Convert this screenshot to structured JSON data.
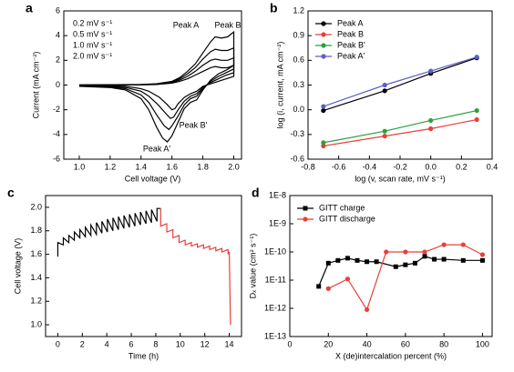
{
  "chart_data": [
    {
      "type": "line",
      "panel_label": "a",
      "xlabel": "Cell voltage (V)",
      "ylabel": "Current (mA cm⁻²)",
      "xlim": [
        0.9,
        2.05
      ],
      "ylim": [
        -6,
        6
      ],
      "xticks": [
        {
          "value": 1,
          "label": "1.0"
        },
        1.2,
        1.4,
        1.6,
        1.8,
        {
          "value": 2,
          "label": "2.0"
        }
      ],
      "yticks": [
        -6,
        -4,
        -2,
        0,
        2,
        4,
        6
      ],
      "legend": "upper left",
      "legend_symbols": false,
      "annotations": [
        "Peak A",
        "Peak B",
        "Peak B'",
        "Peak A'"
      ],
      "series": [
        {
          "name": "0.2 mV s⁻¹",
          "color": "#000000",
          "x": [
            1.0,
            1.2,
            1.4,
            1.5,
            1.6,
            1.65,
            1.7,
            1.75,
            1.8,
            1.85,
            1.88,
            1.92,
            1.96,
            2.0,
            2.0,
            1.95,
            1.9,
            1.85,
            1.8,
            1.76,
            1.72,
            1.68,
            1.64,
            1.62,
            1.6,
            1.57,
            1.52,
            1.45,
            1.4,
            1.3,
            1.2,
            1.0
          ],
          "values": [
            0,
            0.01,
            0.02,
            0.04,
            0.15,
            0.3,
            0.5,
            0.8,
            1.1,
            1.4,
            1.5,
            1.4,
            1.4,
            1.6,
            0.7,
            0.5,
            0.3,
            0.1,
            -0.1,
            -0.5,
            -0.7,
            -1.0,
            -1.5,
            -1.9,
            -2.0,
            -1.6,
            -1.0,
            -0.5,
            -0.3,
            -0.1,
            -0.05,
            -0.02
          ]
        },
        {
          "name": "0.5 mV s⁻¹",
          "color": "#000000",
          "x": [
            1.0,
            1.2,
            1.4,
            1.5,
            1.6,
            1.65,
            1.7,
            1.75,
            1.8,
            1.85,
            1.88,
            1.92,
            1.96,
            2.0,
            2.0,
            1.95,
            1.9,
            1.85,
            1.8,
            1.76,
            1.72,
            1.68,
            1.64,
            1.61,
            1.59,
            1.56,
            1.51,
            1.45,
            1.4,
            1.3,
            1.2,
            1.0
          ],
          "values": [
            0,
            0.01,
            0.03,
            0.06,
            0.2,
            0.4,
            0.7,
            1.1,
            1.6,
            2.0,
            2.1,
            2.0,
            2.0,
            2.2,
            1.0,
            0.8,
            0.5,
            0.2,
            -0.2,
            -0.7,
            -0.9,
            -1.3,
            -2.0,
            -2.6,
            -2.7,
            -2.3,
            -1.6,
            -0.9,
            -0.5,
            -0.2,
            -0.1,
            -0.05
          ]
        },
        {
          "name": "1.0 mV s⁻¹",
          "color": "#000000",
          "x": [
            1.0,
            1.2,
            1.4,
            1.5,
            1.6,
            1.65,
            1.7,
            1.75,
            1.8,
            1.85,
            1.88,
            1.92,
            1.96,
            2.0,
            2.0,
            1.95,
            1.9,
            1.85,
            1.8,
            1.76,
            1.72,
            1.68,
            1.64,
            1.6,
            1.58,
            1.55,
            1.5,
            1.45,
            1.4,
            1.3,
            1.2,
            1.0
          ],
          "values": [
            0,
            0.02,
            0.04,
            0.08,
            0.25,
            0.5,
            0.9,
            1.4,
            2.1,
            2.7,
            2.9,
            2.8,
            2.8,
            3.0,
            1.3,
            1.0,
            0.7,
            0.3,
            -0.3,
            -0.9,
            -1.1,
            -1.6,
            -2.5,
            -3.3,
            -3.6,
            -3.3,
            -2.4,
            -1.4,
            -0.8,
            -0.3,
            -0.15,
            -0.08
          ]
        },
        {
          "name": "2.0 mV s⁻¹",
          "color": "#000000",
          "x": [
            1.0,
            1.2,
            1.4,
            1.5,
            1.6,
            1.65,
            1.7,
            1.75,
            1.8,
            1.85,
            1.88,
            1.92,
            1.96,
            2.0,
            2.0,
            1.95,
            1.9,
            1.85,
            1.8,
            1.76,
            1.72,
            1.68,
            1.64,
            1.6,
            1.57,
            1.54,
            1.5,
            1.45,
            1.4,
            1.3,
            1.2,
            1.0
          ],
          "values": [
            0,
            0.02,
            0.05,
            0.1,
            0.3,
            0.6,
            1.1,
            1.7,
            2.6,
            3.5,
            3.9,
            3.8,
            3.9,
            4.3,
            1.6,
            1.2,
            0.9,
            0.4,
            -0.4,
            -1.2,
            -1.4,
            -1.9,
            -3.0,
            -4.1,
            -4.6,
            -4.3,
            -3.4,
            -2.0,
            -1.1,
            -0.4,
            -0.2,
            -0.1
          ]
        }
      ]
    },
    {
      "type": "line",
      "panel_label": "b",
      "xlabel": "log (v, scan rate, mV s⁻¹)",
      "ylabel": "log (i, current, mA cm⁻²)",
      "xlim": [
        -0.8,
        0.4
      ],
      "ylim": [
        -0.6,
        1.2
      ],
      "xticks": [
        -0.8,
        -0.6,
        -0.4,
        -0.2,
        {
          "value": 0,
          "label": "0.0"
        },
        0.2,
        0.4
      ],
      "yticks": [
        -0.6,
        -0.3,
        {
          "value": 0,
          "label": "0.0"
        },
        0.3,
        0.6,
        0.9,
        1.2
      ],
      "legend": "upper left",
      "legend_symbols": true,
      "series": [
        {
          "name": "Peak A",
          "color": "#000000",
          "marker": "circle",
          "x": [
            -0.7,
            -0.3,
            0,
            0.3
          ],
          "values": [
            -0.01,
            0.23,
            0.44,
            0.63
          ]
        },
        {
          "name": "Peak B",
          "color": "#e8403a",
          "marker": "circle",
          "x": [
            -0.7,
            -0.3,
            0,
            0.3
          ],
          "values": [
            -0.44,
            -0.32,
            -0.23,
            -0.12
          ]
        },
        {
          "name": "Peak B'",
          "color": "#2e9e3e",
          "marker": "circle",
          "x": [
            -0.7,
            -0.3,
            0,
            0.3
          ],
          "values": [
            -0.4,
            -0.26,
            -0.13,
            -0.01
          ]
        },
        {
          "name": "Peak A'",
          "color": "#5b5fc7",
          "marker": "circle",
          "x": [
            -0.7,
            -0.3,
            0,
            0.3
          ],
          "values": [
            0.04,
            0.3,
            0.47,
            0.64
          ]
        }
      ]
    },
    {
      "type": "line",
      "panel_label": "c",
      "xlabel": "Time (h)",
      "ylabel": "Cell voltage (V)",
      "xlim": [
        -1,
        15
      ],
      "ylim": [
        0.9,
        2.1
      ],
      "xticks": [
        0,
        2,
        4,
        6,
        8,
        10,
        12,
        14
      ],
      "yticks": [
        {
          "value": 1,
          "label": "1.0"
        },
        1.2,
        1.4,
        1.6,
        1.8,
        {
          "value": 2,
          "label": "2.0"
        }
      ],
      "series": [
        {
          "color": "#000000",
          "x": [
            0,
            0,
            0.45,
            0.45,
            0.9,
            0.9,
            1.35,
            1.35,
            1.8,
            1.8,
            2.25,
            2.25,
            2.7,
            2.7,
            3.15,
            3.15,
            3.6,
            3.6,
            4.05,
            4.05,
            4.5,
            4.5,
            4.95,
            4.95,
            5.4,
            5.4,
            5.85,
            5.85,
            6.3,
            6.3,
            6.75,
            6.75,
            7.2,
            7.2,
            7.65,
            7.65,
            8.1,
            8.1,
            8.4
          ],
          "values": [
            1.58,
            1.7,
            1.68,
            1.74,
            1.7,
            1.76,
            1.72,
            1.79,
            1.74,
            1.81,
            1.75,
            1.83,
            1.76,
            1.85,
            1.77,
            1.87,
            1.78,
            1.88,
            1.79,
            1.9,
            1.8,
            1.91,
            1.81,
            1.92,
            1.82,
            1.93,
            1.83,
            1.94,
            1.84,
            1.95,
            1.85,
            1.96,
            1.86,
            1.97,
            1.87,
            1.98,
            1.88,
            1.99,
            1.99
          ]
        },
        {
          "color": "#e8403a",
          "x": [
            8.4,
            8.4,
            8.9,
            8.9,
            9.4,
            9.4,
            9.9,
            9.9,
            10.4,
            10.4,
            10.9,
            10.9,
            11.4,
            11.4,
            11.9,
            11.9,
            12.4,
            12.4,
            12.9,
            12.9,
            13.4,
            13.4,
            13.9,
            13.9,
            14.0,
            14.1
          ],
          "values": [
            1.99,
            1.84,
            1.86,
            1.79,
            1.81,
            1.74,
            1.76,
            1.7,
            1.72,
            1.68,
            1.7,
            1.67,
            1.69,
            1.66,
            1.68,
            1.65,
            1.67,
            1.64,
            1.66,
            1.63,
            1.65,
            1.62,
            1.64,
            1.6,
            1.62,
            1.0
          ]
        }
      ]
    },
    {
      "type": "line",
      "panel_label": "d",
      "xlabel": "X (de)intercalation percent (%)",
      "ylabel": "Dₓ value (cm² s⁻¹)",
      "xlim": [
        0,
        105
      ],
      "ylim": [
        1e-13,
        1e-08
      ],
      "ylog": true,
      "xticks": [
        0,
        20,
        40,
        60,
        80,
        100
      ],
      "yticks": [
        {
          "value": 1e-13,
          "label": "1E-13"
        },
        {
          "value": 1e-12,
          "label": "1E-12"
        },
        {
          "value": 1e-11,
          "label": "1E-11"
        },
        {
          "value": 1e-10,
          "label": "1E-10"
        },
        {
          "value": 1e-09,
          "label": "1E-9"
        },
        {
          "value": 1e-08,
          "label": "1E-8"
        }
      ],
      "legend": "upper left",
      "legend_symbols": true,
      "series": [
        {
          "name": "GITT charge",
          "color": "#000000",
          "marker": "square",
          "x": [
            15,
            20,
            25,
            30,
            35,
            40,
            45,
            55,
            60,
            65,
            70,
            75,
            80,
            90,
            100
          ],
          "values": [
            6e-12,
            4e-11,
            5e-11,
            6e-11,
            5e-11,
            4.5e-11,
            4.5e-11,
            3e-11,
            3.5e-11,
            4e-11,
            7e-11,
            5.5e-11,
            5.5e-11,
            5e-11,
            5e-11
          ]
        },
        {
          "name": "GITT discharge",
          "color": "#e8403a",
          "marker": "circle",
          "x": [
            20,
            30,
            40,
            50,
            60,
            70,
            80,
            90,
            100
          ],
          "values": [
            5e-12,
            1.1e-11,
            9e-13,
            1e-10,
            1e-10,
            1e-10,
            1.8e-10,
            1.8e-10,
            8e-11
          ]
        }
      ]
    }
  ]
}
